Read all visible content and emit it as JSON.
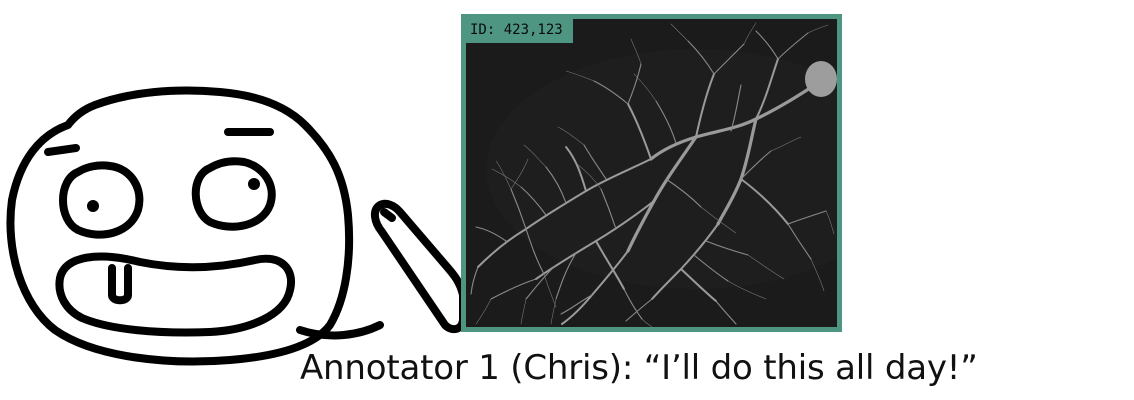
{
  "image_panel": {
    "id_label": "ID: 423,123",
    "frame_color": "#4e9682"
  },
  "caption": {
    "text": "Annotator 1 (Chris): “I’ll do this all day!”"
  },
  "cartoon": {
    "icon": "happy-annotator-face-with-pen"
  }
}
